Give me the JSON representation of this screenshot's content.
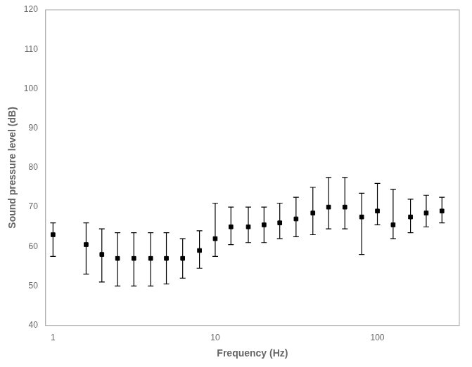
{
  "chart_data": {
    "type": "scatter",
    "xlabel": "Frequency (Hz)",
    "ylabel": "Sound pressure level (dB)",
    "x": [
      1.0,
      1.6,
      2.0,
      2.5,
      3.15,
      4.0,
      5.0,
      6.3,
      8.0,
      10.0,
      12.5,
      16.0,
      20.0,
      25.0,
      31.5,
      40.0,
      50.0,
      63.0,
      80.0,
      100.0,
      125.0,
      160.0,
      200.0,
      250.0
    ],
    "values": [
      63.0,
      60.5,
      58.0,
      57.0,
      57.0,
      57.0,
      57.0,
      57.0,
      59.0,
      62.0,
      65.0,
      65.0,
      65.5,
      66.0,
      67.0,
      68.5,
      70.0,
      70.0,
      67.5,
      69.0,
      65.5,
      67.5,
      68.5,
      69.0
    ],
    "yerr_upper": [
      3.0,
      5.5,
      6.5,
      6.5,
      6.5,
      6.5,
      6.5,
      5.0,
      5.0,
      9.0,
      5.0,
      5.0,
      4.5,
      5.0,
      5.5,
      6.5,
      7.5,
      7.5,
      6.0,
      7.0,
      9.0,
      4.5,
      4.5,
      3.5
    ],
    "yerr_lower": [
      5.5,
      7.5,
      7.0,
      7.0,
      7.0,
      7.0,
      6.5,
      5.0,
      4.5,
      4.5,
      4.5,
      4.0,
      4.5,
      4.0,
      4.5,
      5.5,
      5.5,
      5.5,
      9.5,
      3.5,
      3.5,
      4.0,
      3.5,
      3.0
    ],
    "color": "#000000",
    "marker": "square",
    "log": "x",
    "xlim": [
      0.9,
      320
    ],
    "ylim": [
      40,
      120
    ],
    "xticks": [
      1,
      10,
      100
    ],
    "yticks": [
      40,
      50,
      60,
      70,
      80,
      90,
      100,
      110,
      120
    ],
    "grid": false,
    "legend": null
  }
}
